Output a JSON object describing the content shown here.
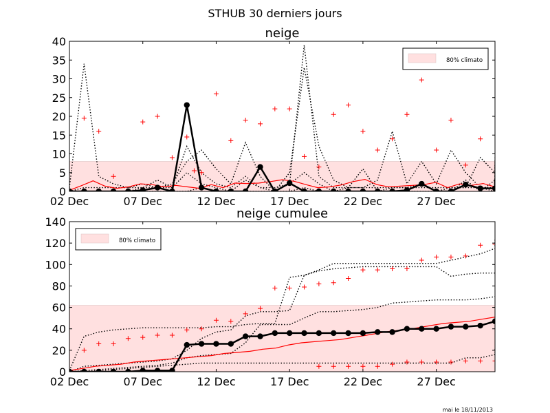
{
  "figure": {
    "title": "STHUB 30 derniers jours",
    "footer": "mai le 18/11/2013"
  },
  "chart_data": [
    {
      "type": "line",
      "title": "neige",
      "x_start_day": 2,
      "x_ticks": [
        {
          "day": 2,
          "label": "02 Dec"
        },
        {
          "day": 7,
          "label": "07 Dec"
        },
        {
          "day": 12,
          "label": "12 Dec"
        },
        {
          "day": 17,
          "label": "17 Dec"
        },
        {
          "day": 22,
          "label": "22 Dec"
        },
        {
          "day": 27,
          "label": "27 Dec"
        }
      ],
      "xlim": [
        2,
        31
      ],
      "ylim": [
        0,
        40
      ],
      "y_ticks": [
        0,
        5,
        10,
        15,
        20,
        25,
        30,
        35,
        40
      ],
      "band": {
        "label": "80% climato",
        "low": 0,
        "high": 8,
        "color": "#ffe0e0"
      },
      "legend": "top-right",
      "series": [
        {
          "role": "obs",
          "color": "#000000",
          "values": [
            0,
            0,
            0,
            0,
            0,
            0.3,
            1,
            0,
            23,
            1,
            0,
            0,
            0,
            6.5,
            0,
            2.2,
            0,
            0,
            0,
            0,
            0,
            0,
            0,
            0.3,
            2,
            0,
            0,
            1.8,
            0.8,
            0.8,
            3.2,
            0
          ]
        },
        {
          "role": "climatology-mean",
          "color": "#ff0000",
          "values": [
            0.3,
            1.5,
            2.8,
            1.4,
            0.8,
            1.2,
            2.0,
            1.8,
            1.2,
            1.6,
            1.2,
            0.8,
            1.8,
            1.0,
            2.2,
            2.1,
            2.2,
            2.6,
            3.1,
            2.7,
            1.8,
            1.0,
            1.2,
            1.7,
            2.6,
            3.2,
            1.8,
            1.2,
            1.4,
            1.6,
            1.8,
            2.4,
            1.0,
            2.0,
            1.6,
            2.1,
            1.2
          ]
        },
        {
          "role": "member",
          "color": "#000000",
          "style": "dotted",
          "values": [
            1,
            34,
            4,
            2,
            1,
            2,
            1,
            1,
            12,
            5,
            2,
            1,
            4,
            1,
            1,
            2,
            39,
            4,
            1,
            1,
            1,
            1,
            1,
            1,
            1,
            1,
            1,
            1,
            1,
            1,
            2,
            8
          ]
        },
        {
          "role": "member",
          "color": "#000000",
          "style": "dotted",
          "values": [
            0,
            1,
            1,
            1,
            1,
            1,
            1,
            2,
            8,
            11,
            6,
            2,
            13,
            4,
            0,
            5,
            33,
            12,
            3,
            1,
            1,
            3,
            16,
            2,
            8,
            2,
            11,
            5,
            1,
            0,
            0,
            3
          ]
        },
        {
          "role": "member",
          "color": "#000000",
          "style": "dotted",
          "values": [
            0,
            0,
            0,
            0,
            0,
            1,
            3,
            1,
            5,
            2,
            1,
            0,
            3,
            1,
            0,
            2,
            5,
            2,
            0,
            0,
            0,
            0,
            1,
            1,
            2,
            0,
            1,
            1,
            9,
            5,
            1,
            9
          ]
        },
        {
          "role": "member",
          "color": "#000000",
          "style": "dotted",
          "values": [
            0,
            0,
            0,
            0,
            0,
            0,
            0,
            0,
            0,
            1,
            0,
            0,
            0,
            0,
            0,
            0,
            1,
            0,
            0,
            1,
            6,
            0,
            0,
            0,
            0,
            0,
            0,
            3,
            0,
            3,
            7,
            0
          ]
        }
      ],
      "plus_markers": {
        "color": "#ff0000",
        "points": [
          [
            3,
            19.5
          ],
          [
            4,
            16
          ],
          [
            5,
            4
          ],
          [
            7,
            18.5
          ],
          [
            8,
            20
          ],
          [
            9,
            9
          ],
          [
            10,
            14.5
          ],
          [
            10.5,
            5.5
          ],
          [
            11,
            5
          ],
          [
            12,
            26
          ],
          [
            13,
            13.5
          ],
          [
            14,
            19
          ],
          [
            15,
            18
          ],
          [
            16,
            22
          ],
          [
            17,
            22
          ],
          [
            18,
            9.3
          ],
          [
            19,
            6.5
          ],
          [
            20,
            20.5
          ],
          [
            21,
            23
          ],
          [
            22,
            16
          ],
          [
            23,
            11
          ],
          [
            24,
            14
          ],
          [
            25,
            20.5
          ],
          [
            26,
            29.7
          ],
          [
            27,
            11
          ],
          [
            28,
            19
          ],
          [
            29,
            7
          ],
          [
            30,
            14
          ],
          [
            31,
            0.5
          ]
        ]
      }
    },
    {
      "type": "line",
      "title": "neige cumulee",
      "x_start_day": 2,
      "x_ticks": [
        {
          "day": 2,
          "label": "02 Dec"
        },
        {
          "day": 7,
          "label": "07 Dec"
        },
        {
          "day": 12,
          "label": "12 Dec"
        },
        {
          "day": 17,
          "label": "17 Dec"
        },
        {
          "day": 22,
          "label": "22 Dec"
        },
        {
          "day": 27,
          "label": "27 Dec"
        }
      ],
      "xlim": [
        2,
        31
      ],
      "ylim": [
        0,
        140
      ],
      "y_ticks": [
        0,
        20,
        40,
        60,
        80,
        100,
        120,
        140
      ],
      "band": {
        "label": "80% climato",
        "low": 0,
        "high": 62,
        "color": "#ffe0e0"
      },
      "legend": "top-left",
      "series": [
        {
          "role": "obs",
          "color": "#000000",
          "values": [
            0,
            0,
            0,
            0,
            0,
            1,
            1,
            1,
            25,
            26,
            26,
            26,
            33,
            33,
            36,
            36,
            36,
            36,
            36,
            36,
            36,
            37,
            37,
            40,
            40,
            40,
            42,
            42,
            43,
            47,
            47,
            47
          ]
        },
        {
          "role": "climatology-mean",
          "color": "#ff0000",
          "values": [
            1,
            3,
            5,
            6,
            7,
            9,
            10,
            11,
            12,
            13,
            14,
            15,
            17,
            18,
            19,
            21,
            22,
            25,
            27,
            28,
            29,
            30,
            32,
            34,
            36,
            38,
            39,
            41,
            43,
            45,
            46,
            47,
            49,
            51
          ]
        },
        {
          "role": "member",
          "color": "#000000",
          "style": "dotted",
          "values": [
            1,
            33,
            37,
            39,
            40,
            41,
            41,
            41,
            41,
            41,
            42,
            42,
            44,
            45,
            45,
            88,
            90,
            95,
            101,
            101,
            101,
            101,
            101,
            101,
            101,
            101,
            104,
            107,
            110,
            115,
            117,
            124
          ]
        },
        {
          "role": "member",
          "color": "#000000",
          "style": "dotted",
          "values": [
            0,
            5,
            6,
            7,
            8,
            9,
            10,
            12,
            20,
            31,
            37,
            39,
            52,
            56,
            56,
            57,
            90,
            94,
            96,
            97,
            98,
            98,
            98,
            98,
            98,
            98,
            89,
            91,
            92,
            92,
            93,
            93
          ]
        },
        {
          "role": "member",
          "color": "#000000",
          "style": "dotted",
          "values": [
            0,
            1,
            2,
            3,
            4,
            5,
            6,
            8,
            13,
            15,
            16,
            17,
            27,
            44,
            44,
            44,
            50,
            56,
            56,
            57,
            58,
            60,
            64,
            65,
            66,
            67,
            67,
            67,
            68,
            70,
            71,
            72
          ]
        },
        {
          "role": "member",
          "color": "#000000",
          "style": "dotted",
          "values": [
            0,
            0,
            1,
            2,
            3,
            4,
            5,
            6,
            7,
            8,
            8,
            8,
            8,
            8,
            8,
            8,
            8,
            8,
            8,
            8,
            8,
            8,
            8,
            8,
            8,
            8,
            8,
            13,
            13,
            16,
            22,
            22
          ]
        }
      ],
      "plus_markers": {
        "color": "#ff0000",
        "points": [
          [
            3,
            20
          ],
          [
            4,
            26
          ],
          [
            5,
            26
          ],
          [
            6,
            31
          ],
          [
            7,
            32
          ],
          [
            8,
            34
          ],
          [
            9,
            34
          ],
          [
            10,
            39
          ],
          [
            11,
            40
          ],
          [
            12,
            48
          ],
          [
            13,
            47
          ],
          [
            14,
            54
          ],
          [
            15,
            59
          ],
          [
            16,
            78
          ],
          [
            17,
            78
          ],
          [
            18,
            79
          ],
          [
            19,
            82
          ],
          [
            20,
            83
          ],
          [
            21,
            87
          ],
          [
            22,
            95
          ],
          [
            23,
            95
          ],
          [
            24,
            96
          ],
          [
            25,
            96
          ],
          [
            26,
            104
          ],
          [
            27,
            107
          ],
          [
            28,
            107
          ],
          [
            29,
            108
          ],
          [
            30,
            118
          ],
          [
            31,
            119
          ],
          [
            19,
            5
          ],
          [
            20,
            5
          ],
          [
            21,
            5
          ],
          [
            22,
            5
          ],
          [
            23,
            5
          ],
          [
            24,
            7
          ],
          [
            25,
            9
          ],
          [
            26,
            9
          ],
          [
            27,
            9
          ],
          [
            28,
            9
          ],
          [
            29,
            10
          ],
          [
            30,
            10
          ],
          [
            31,
            10
          ]
        ]
      }
    }
  ]
}
